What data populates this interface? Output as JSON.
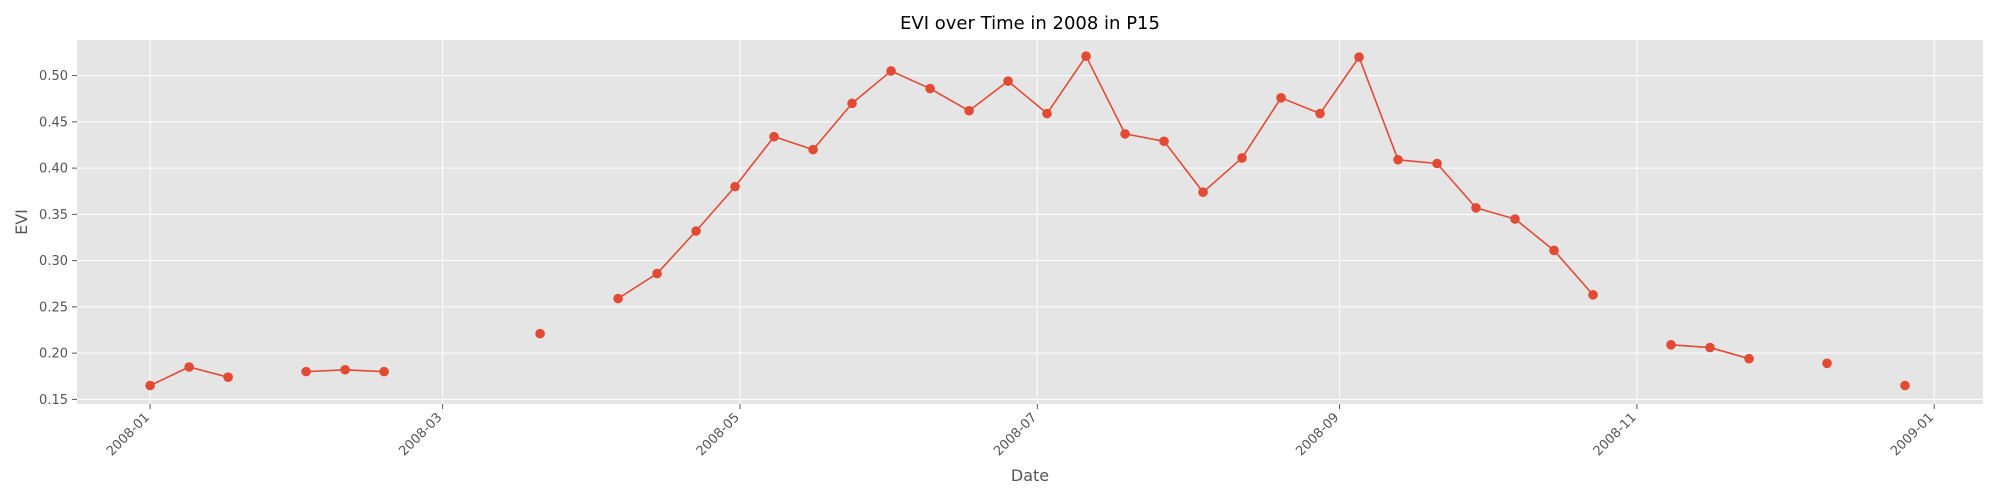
{
  "chart_data": {
    "type": "line",
    "title": "EVI over Time in 2008 in P15",
    "xlabel": "Date",
    "ylabel": "EVI",
    "xlim": [
      "2007-12-17",
      "2009-01-11"
    ],
    "ylim": [
      0.145,
      0.5385
    ],
    "x_ticks": [
      "2008-01",
      "2008-03",
      "2008-05",
      "2008-07",
      "2008-09",
      "2008-11",
      "2009-01"
    ],
    "y_ticks": [
      "0.15",
      "0.20",
      "0.25",
      "0.30",
      "0.35",
      "0.40",
      "0.45",
      "0.50"
    ],
    "grid": true,
    "style": "ggplot",
    "colors": {
      "series": "#E24A33",
      "panel": "#E5E5E5",
      "grid": "#FFFFFF",
      "text": "#555555"
    },
    "series": [
      {
        "points": [
          [
            "2008-01-01",
            0.165
          ],
          [
            "2008-01-09",
            0.185
          ],
          [
            "2008-01-17",
            0.174
          ],
          null,
          [
            "2008-02-02",
            0.18
          ],
          [
            "2008-02-10",
            0.182
          ],
          [
            "2008-02-18",
            0.18
          ],
          null,
          [
            "2008-03-21",
            0.221
          ],
          null,
          [
            "2008-04-06",
            0.259
          ],
          [
            "2008-04-14",
            0.286
          ],
          [
            "2008-04-22",
            0.332
          ],
          [
            "2008-04-30",
            0.38
          ],
          [
            "2008-05-08",
            0.434
          ],
          [
            "2008-05-16",
            0.42
          ],
          [
            "2008-05-24",
            0.47
          ],
          [
            "2008-06-01",
            0.505
          ],
          [
            "2008-06-09",
            0.486
          ],
          [
            "2008-06-17",
            0.462
          ],
          [
            "2008-06-25",
            0.494
          ],
          [
            "2008-07-03",
            0.459
          ],
          [
            "2008-07-11",
            0.521
          ],
          [
            "2008-07-19",
            0.437
          ],
          [
            "2008-07-27",
            0.429
          ],
          [
            "2008-08-04",
            0.374
          ],
          [
            "2008-08-12",
            0.411
          ],
          [
            "2008-08-20",
            0.476
          ],
          [
            "2008-08-28",
            0.459
          ],
          [
            "2008-09-05",
            0.52
          ],
          [
            "2008-09-13",
            0.409
          ],
          [
            "2008-09-21",
            0.405
          ],
          [
            "2008-09-29",
            0.357
          ],
          [
            "2008-10-07",
            0.345
          ],
          [
            "2008-10-15",
            0.311
          ],
          [
            "2008-10-23",
            0.263
          ],
          null,
          [
            "2008-11-08",
            0.209
          ],
          [
            "2008-11-16",
            0.206
          ],
          [
            "2008-11-24",
            0.194
          ],
          null,
          [
            "2008-12-10",
            0.189
          ],
          null,
          [
            "2008-12-26",
            0.165
          ]
        ]
      }
    ]
  }
}
